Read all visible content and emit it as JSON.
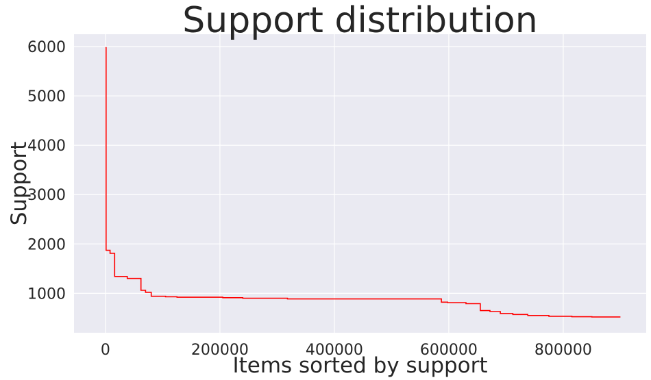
{
  "chart_data": {
    "type": "line",
    "title": "Support distribution",
    "xlabel": "Items sorted by support",
    "ylabel": "Support",
    "xlim": [
      -55000,
      945000
    ],
    "ylim": [
      200,
      6250
    ],
    "grid": true,
    "xticks": [
      0,
      200000,
      400000,
      600000,
      800000
    ],
    "xtick_labels": [
      "0",
      "200000",
      "400000",
      "600000",
      "800000"
    ],
    "yticks": [
      1000,
      2000,
      3000,
      4000,
      5000,
      6000
    ],
    "ytick_labels": [
      "1000",
      "2000",
      "3000",
      "4000",
      "5000",
      "6000"
    ],
    "series": [
      {
        "name": "support",
        "color": "#ff0000",
        "x": [
          0,
          1000,
          1000,
          8000,
          8000,
          16000,
          16000,
          38000,
          38000,
          62000,
          62000,
          70000,
          70000,
          80000,
          80000,
          105000,
          105000,
          125000,
          125000,
          205000,
          205000,
          240000,
          240000,
          318000,
          318000,
          587000,
          587000,
          598000,
          598000,
          630000,
          630000,
          655000,
          655000,
          672000,
          672000,
          690000,
          690000,
          712000,
          712000,
          738000,
          738000,
          775000,
          775000,
          815000,
          815000,
          850000,
          850000,
          900000
        ],
        "y": [
          5980,
          5980,
          1870,
          1870,
          1810,
          1810,
          1340,
          1340,
          1300,
          1300,
          1060,
          1060,
          1020,
          1020,
          940,
          940,
          930,
          930,
          920,
          920,
          910,
          910,
          900,
          900,
          885,
          885,
          820,
          820,
          810,
          810,
          790,
          790,
          650,
          650,
          630,
          630,
          590,
          590,
          570,
          570,
          550,
          550,
          535,
          535,
          525,
          525,
          520,
          520
        ]
      }
    ]
  }
}
